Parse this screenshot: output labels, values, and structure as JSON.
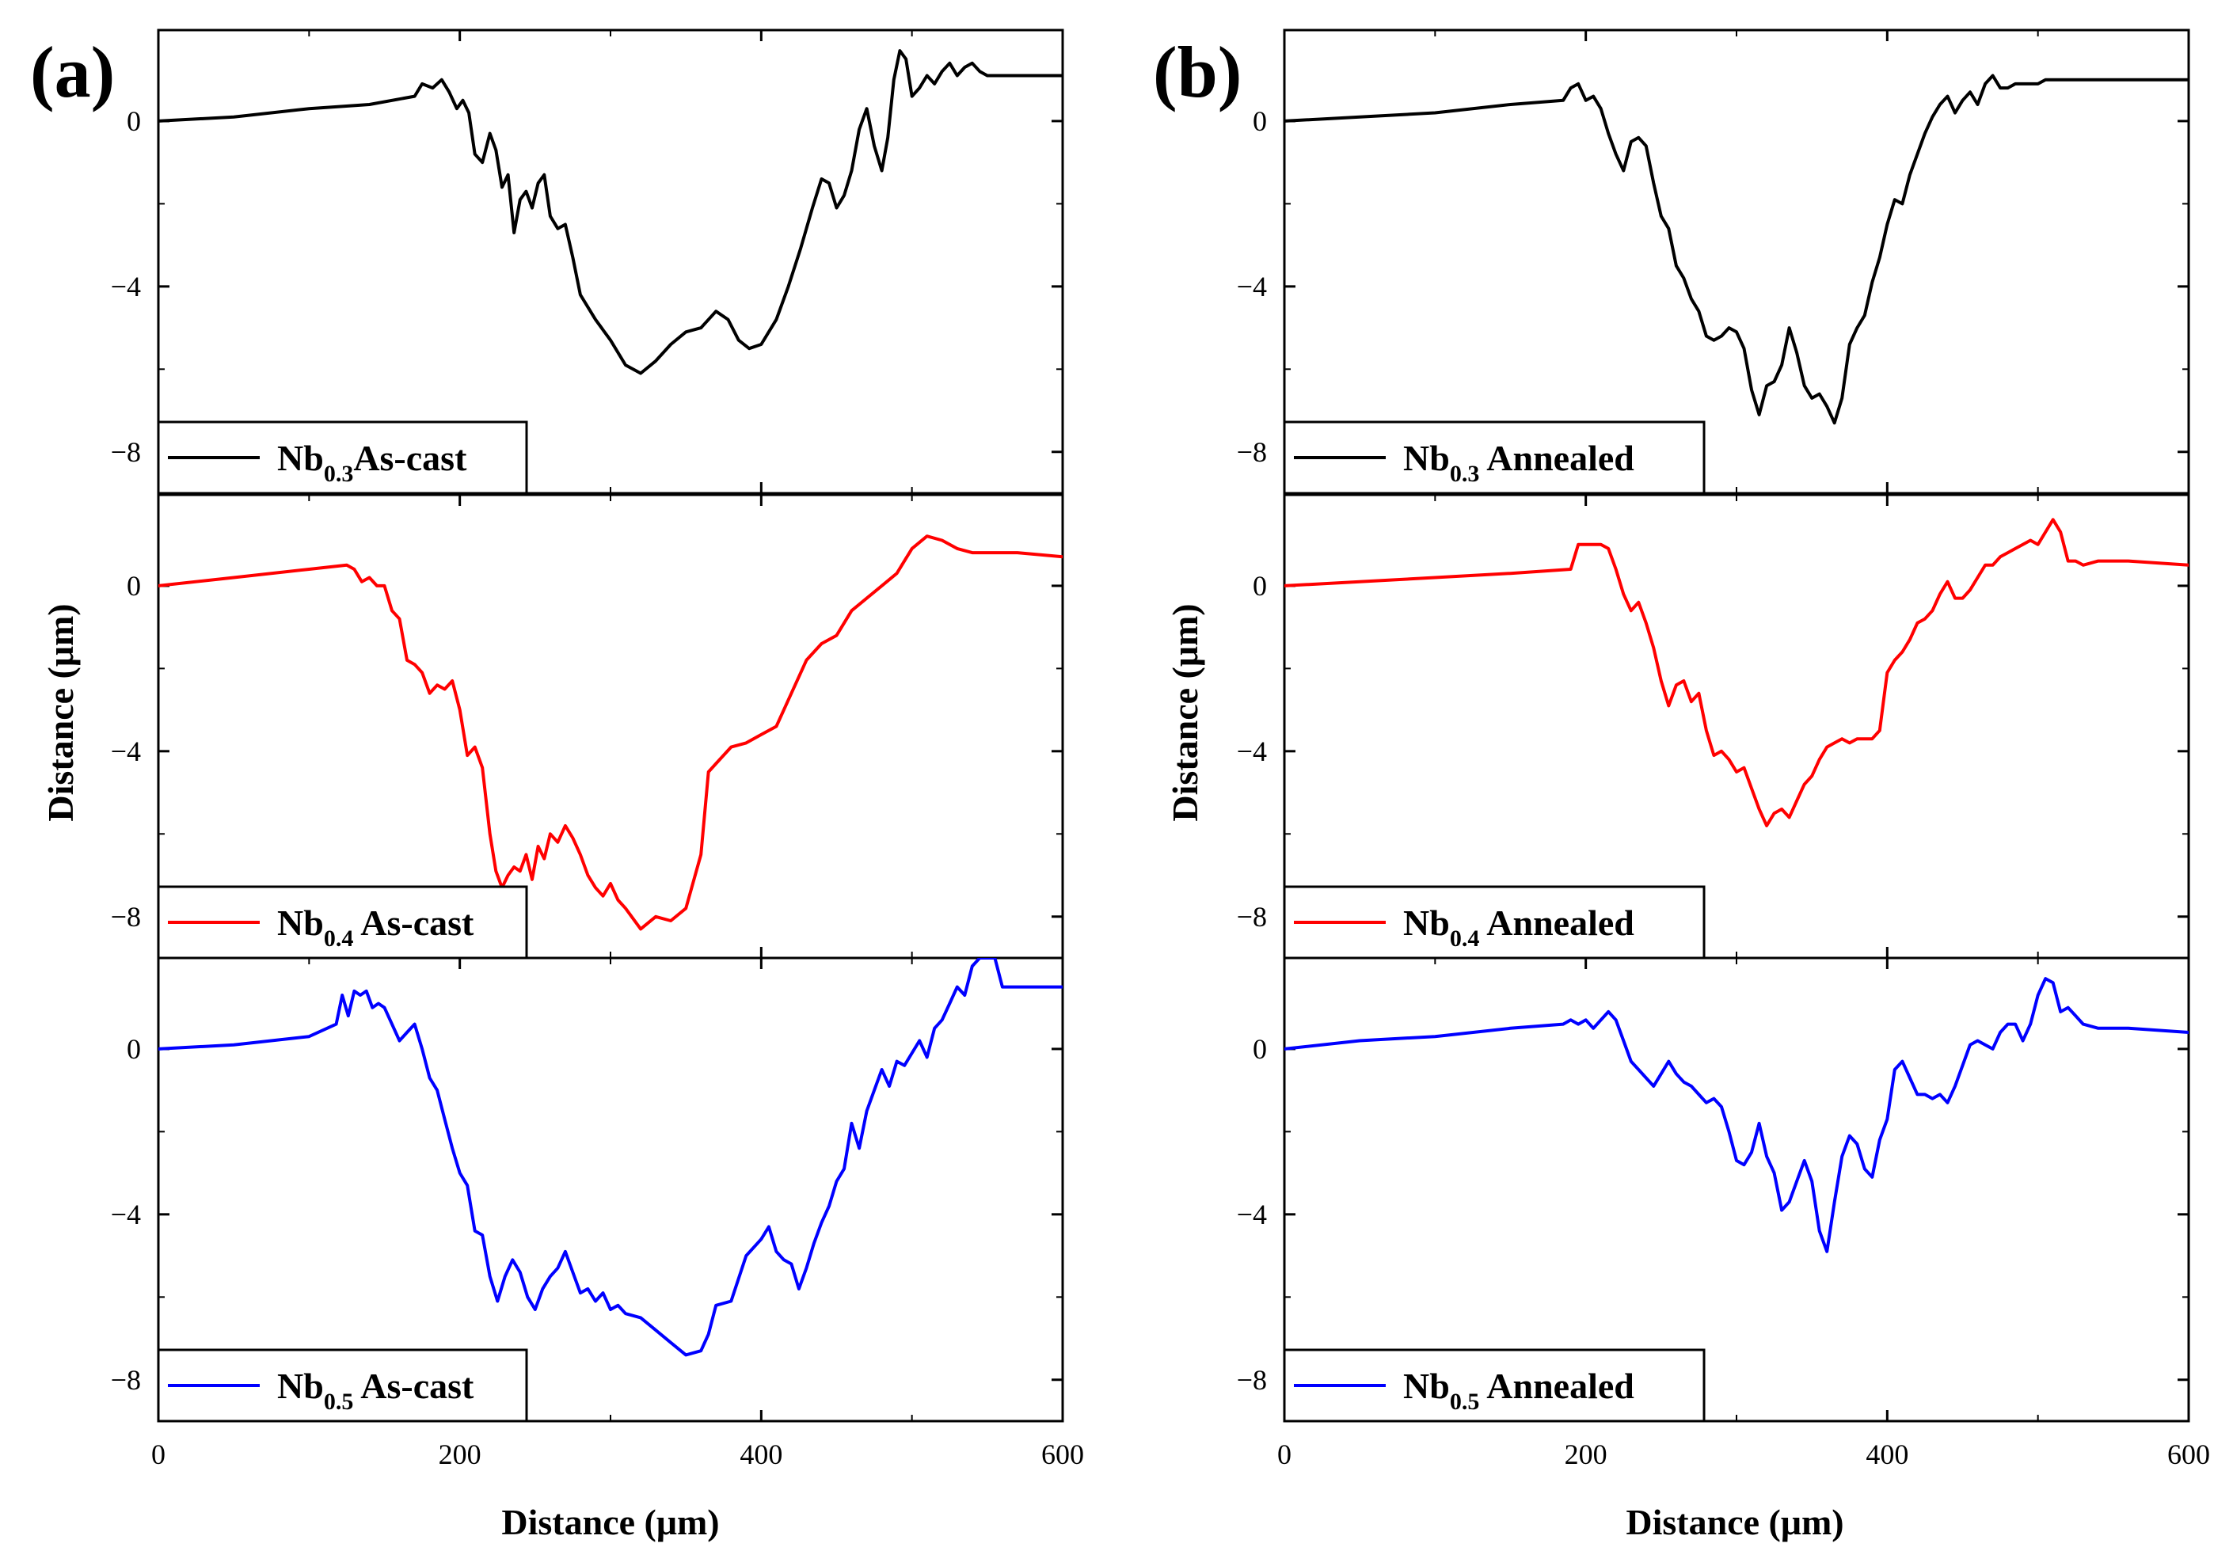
{
  "figure": {
    "panels": [
      {
        "letter": "(a)",
        "ylabel": "Distance (μm)",
        "xlabel": "Distance (μm)"
      },
      {
        "letter": "(b)",
        "ylabel": "Distance (μm)",
        "xlabel": "Distance (μm)"
      }
    ]
  },
  "chart_data": [
    {
      "type": "line",
      "panel": "(a)",
      "row": 0,
      "series_name": "Nb0.3As-cast",
      "legend": {
        "base": "Nb",
        "sub": "0.3",
        "rest": "As-cast"
      },
      "color": "#000000",
      "xlim": [
        0,
        600
      ],
      "ylim": [
        -9,
        2.2
      ],
      "xticks": [
        0,
        200,
        400,
        600
      ],
      "yticks": [
        0,
        -4,
        -8
      ],
      "x": [
        0,
        50,
        100,
        140,
        170,
        175,
        182,
        188,
        193,
        198,
        202,
        206,
        210,
        215,
        220,
        224,
        228,
        232,
        236,
        240,
        244,
        248,
        252,
        256,
        260,
        265,
        270,
        275,
        280,
        290,
        300,
        310,
        320,
        330,
        340,
        350,
        360,
        370,
        378,
        385,
        392,
        400,
        410,
        418,
        426,
        434,
        440,
        445,
        450,
        455,
        460,
        465,
        470,
        475,
        480,
        484,
        488,
        492,
        496,
        500,
        505,
        510,
        515,
        520,
        525,
        530,
        535,
        540,
        545,
        550,
        600
      ],
      "y": [
        0,
        0.1,
        0.3,
        0.4,
        0.6,
        0.9,
        0.8,
        1.0,
        0.7,
        0.3,
        0.5,
        0.2,
        -0.8,
        -1.0,
        -0.3,
        -0.7,
        -1.6,
        -1.3,
        -2.7,
        -1.9,
        -1.7,
        -2.1,
        -1.5,
        -1.3,
        -2.3,
        -2.6,
        -2.5,
        -3.3,
        -4.2,
        -4.8,
        -5.3,
        -5.9,
        -6.1,
        -5.8,
        -5.4,
        -5.1,
        -5.0,
        -4.6,
        -4.8,
        -5.3,
        -5.5,
        -5.4,
        -4.8,
        -4.0,
        -3.1,
        -2.1,
        -1.4,
        -1.5,
        -2.1,
        -1.8,
        -1.2,
        -0.2,
        0.3,
        -0.6,
        -1.2,
        -0.4,
        1.0,
        1.7,
        1.5,
        0.6,
        0.8,
        1.1,
        0.9,
        1.2,
        1.4,
        1.1,
        1.3,
        1.4,
        1.2,
        1.1,
        1.1
      ]
    },
    {
      "type": "line",
      "panel": "(a)",
      "row": 1,
      "series_name": "Nb0.4 As-cast",
      "legend": {
        "base": "Nb",
        "sub": "0.4",
        "rest": " As-cast"
      },
      "color": "#ff0000",
      "xlim": [
        0,
        600
      ],
      "ylim": [
        -9,
        2.2
      ],
      "xticks": [
        0,
        200,
        400,
        600
      ],
      "yticks": [
        0,
        -4,
        -8
      ],
      "x": [
        0,
        50,
        100,
        125,
        130,
        135,
        140,
        145,
        150,
        155,
        160,
        165,
        170,
        175,
        180,
        185,
        190,
        195,
        200,
        205,
        210,
        215,
        220,
        224,
        228,
        232,
        236,
        240,
        244,
        248,
        252,
        256,
        260,
        265,
        270,
        275,
        280,
        285,
        290,
        295,
        300,
        305,
        310,
        320,
        330,
        340,
        350,
        360,
        365,
        370,
        380,
        390,
        400,
        410,
        420,
        430,
        440,
        450,
        460,
        470,
        480,
        490,
        500,
        510,
        520,
        530,
        540,
        550,
        560,
        570,
        600
      ],
      "y": [
        0,
        0.2,
        0.4,
        0.5,
        0.4,
        0.1,
        0.2,
        0.0,
        0.0,
        -0.6,
        -0.8,
        -1.8,
        -1.9,
        -2.1,
        -2.6,
        -2.4,
        -2.5,
        -2.3,
        -3.0,
        -4.1,
        -3.9,
        -4.4,
        -6.0,
        -6.9,
        -7.3,
        -7.0,
        -6.8,
        -6.9,
        -6.5,
        -7.1,
        -6.3,
        -6.6,
        -6.0,
        -6.2,
        -5.8,
        -6.1,
        -6.5,
        -7.0,
        -7.3,
        -7.5,
        -7.2,
        -7.6,
        -7.8,
        -8.3,
        -8.0,
        -8.1,
        -7.8,
        -6.5,
        -4.5,
        -4.3,
        -3.9,
        -3.8,
        -3.6,
        -3.4,
        -2.6,
        -1.8,
        -1.4,
        -1.2,
        -0.6,
        -0.3,
        0.0,
        0.3,
        0.9,
        1.2,
        1.1,
        0.9,
        0.8,
        0.8,
        0.8,
        0.8,
        0.7
      ]
    },
    {
      "type": "line",
      "panel": "(a)",
      "row": 2,
      "series_name": "Nb0.5 As-cast",
      "legend": {
        "base": "Nb",
        "sub": "0.5",
        "rest": " As-cast"
      },
      "color": "#0000ff",
      "xlim": [
        0,
        600
      ],
      "ylim": [
        -9,
        2.2
      ],
      "xticks": [
        0,
        200,
        400,
        600
      ],
      "yticks": [
        0,
        -4,
        -8
      ],
      "x": [
        0,
        50,
        100,
        118,
        122,
        126,
        130,
        134,
        138,
        142,
        146,
        150,
        155,
        160,
        165,
        170,
        175,
        180,
        185,
        190,
        195,
        200,
        205,
        210,
        215,
        220,
        225,
        230,
        235,
        240,
        245,
        250,
        255,
        260,
        265,
        270,
        275,
        280,
        285,
        290,
        295,
        300,
        305,
        310,
        320,
        330,
        340,
        350,
        360,
        365,
        370,
        380,
        390,
        400,
        405,
        410,
        415,
        420,
        425,
        430,
        435,
        440,
        445,
        450,
        455,
        460,
        465,
        470,
        475,
        480,
        485,
        490,
        495,
        500,
        505,
        510,
        515,
        520,
        525,
        530,
        535,
        540,
        545,
        550,
        555,
        560,
        565,
        570,
        575,
        600
      ],
      "y": [
        0,
        0.1,
        0.3,
        0.6,
        1.3,
        0.8,
        1.4,
        1.3,
        1.4,
        1.0,
        1.1,
        1.0,
        0.6,
        0.2,
        0.4,
        0.6,
        0.0,
        -0.7,
        -1.0,
        -1.7,
        -2.4,
        -3.0,
        -3.3,
        -4.4,
        -4.5,
        -5.5,
        -6.1,
        -5.5,
        -5.1,
        -5.4,
        -6.0,
        -6.3,
        -5.8,
        -5.5,
        -5.3,
        -4.9,
        -5.4,
        -5.9,
        -5.8,
        -6.1,
        -5.9,
        -6.3,
        -6.2,
        -6.4,
        -6.5,
        -6.8,
        -7.1,
        -7.4,
        -7.3,
        -6.9,
        -6.2,
        -6.1,
        -5.0,
        -4.6,
        -4.3,
        -4.9,
        -5.1,
        -5.2,
        -5.8,
        -5.3,
        -4.7,
        -4.2,
        -3.8,
        -3.2,
        -2.9,
        -1.8,
        -2.4,
        -1.5,
        -1.0,
        -0.5,
        -0.9,
        -0.3,
        -0.4,
        -0.1,
        0.2,
        -0.2,
        0.5,
        0.7,
        1.1,
        1.5,
        1.3,
        2.0,
        2.2,
        2.2,
        2.2,
        1.5,
        1.5,
        1.5,
        1.5,
        1.5
      ]
    },
    {
      "type": "line",
      "panel": "(b)",
      "row": 0,
      "series_name": "Nb0.3 Annealed",
      "legend": {
        "base": "Nb",
        "sub": "0.3",
        "rest": " Annealed"
      },
      "color": "#000000",
      "xlim": [
        0,
        600
      ],
      "ylim": [
        -9,
        2.2
      ],
      "xticks": [
        0,
        200,
        400,
        600
      ],
      "yticks": [
        0,
        -4,
        -8
      ],
      "x": [
        0,
        50,
        100,
        150,
        185,
        190,
        195,
        200,
        205,
        210,
        215,
        220,
        225,
        230,
        235,
        240,
        245,
        250,
        255,
        260,
        265,
        270,
        275,
        280,
        285,
        290,
        295,
        300,
        305,
        310,
        315,
        320,
        325,
        330,
        335,
        340,
        345,
        350,
        355,
        360,
        365,
        370,
        375,
        380,
        385,
        390,
        395,
        400,
        405,
        410,
        415,
        420,
        425,
        430,
        435,
        440,
        445,
        450,
        455,
        460,
        465,
        470,
        475,
        480,
        485,
        490,
        495,
        500,
        505,
        510,
        515,
        520,
        525,
        530,
        540,
        560,
        600
      ],
      "y": [
        0,
        0.1,
        0.2,
        0.4,
        0.5,
        0.8,
        0.9,
        0.5,
        0.6,
        0.3,
        -0.3,
        -0.8,
        -1.2,
        -0.5,
        -0.4,
        -0.6,
        -1.5,
        -2.3,
        -2.6,
        -3.5,
        -3.8,
        -4.3,
        -4.6,
        -5.2,
        -5.3,
        -5.2,
        -5.0,
        -5.1,
        -5.5,
        -6.5,
        -7.1,
        -6.4,
        -6.3,
        -5.9,
        -5.0,
        -5.6,
        -6.4,
        -6.7,
        -6.6,
        -6.9,
        -7.3,
        -6.7,
        -5.4,
        -5.0,
        -4.7,
        -3.9,
        -3.3,
        -2.5,
        -1.9,
        -2.0,
        -1.3,
        -0.8,
        -0.3,
        0.1,
        0.4,
        0.6,
        0.2,
        0.5,
        0.7,
        0.4,
        0.9,
        1.1,
        0.8,
        0.8,
        0.9,
        0.9,
        0.9,
        0.9,
        1.0,
        1.0,
        1.0,
        1.0,
        1.0,
        1.0,
        1.0,
        1.0,
        1.0
      ]
    },
    {
      "type": "line",
      "panel": "(b)",
      "row": 1,
      "series_name": "Nb0.4 Annealed",
      "legend": {
        "base": "Nb",
        "sub": "0.4",
        "rest": " Annealed"
      },
      "color": "#ff0000",
      "xlim": [
        0,
        600
      ],
      "ylim": [
        -9,
        2.2
      ],
      "xticks": [
        0,
        200,
        400,
        600
      ],
      "yticks": [
        0,
        -4,
        -8
      ],
      "x": [
        0,
        50,
        100,
        150,
        190,
        195,
        200,
        205,
        210,
        215,
        220,
        225,
        230,
        235,
        240,
        245,
        250,
        255,
        260,
        265,
        270,
        275,
        280,
        285,
        290,
        295,
        300,
        305,
        310,
        315,
        320,
        325,
        330,
        335,
        340,
        345,
        350,
        355,
        360,
        365,
        370,
        375,
        380,
        385,
        390,
        395,
        400,
        405,
        410,
        415,
        420,
        425,
        430,
        435,
        440,
        445,
        450,
        455,
        460,
        465,
        470,
        475,
        480,
        485,
        490,
        495,
        500,
        505,
        510,
        515,
        520,
        525,
        530,
        540,
        560,
        600
      ],
      "y": [
        0,
        0.1,
        0.2,
        0.3,
        0.4,
        1.0,
        1.0,
        1.0,
        1.0,
        0.9,
        0.4,
        -0.2,
        -0.6,
        -0.4,
        -0.9,
        -1.5,
        -2.3,
        -2.9,
        -2.4,
        -2.3,
        -2.8,
        -2.6,
        -3.5,
        -4.1,
        -4.0,
        -4.2,
        -4.5,
        -4.4,
        -4.9,
        -5.4,
        -5.8,
        -5.5,
        -5.4,
        -5.6,
        -5.2,
        -4.8,
        -4.6,
        -4.2,
        -3.9,
        -3.8,
        -3.7,
        -3.8,
        -3.7,
        -3.7,
        -3.7,
        -3.5,
        -2.1,
        -1.8,
        -1.6,
        -1.3,
        -0.9,
        -0.8,
        -0.6,
        -0.2,
        0.1,
        -0.3,
        -0.3,
        -0.1,
        0.2,
        0.5,
        0.5,
        0.7,
        0.8,
        0.9,
        1.0,
        1.1,
        1.0,
        1.3,
        1.6,
        1.3,
        0.6,
        0.6,
        0.5,
        0.6,
        0.6,
        0.5
      ]
    },
    {
      "type": "line",
      "panel": "(b)",
      "row": 2,
      "series_name": "Nb0.5 Annealed",
      "legend": {
        "base": "Nb",
        "sub": "0.5",
        "rest": " Annealed"
      },
      "color": "#0000ff",
      "xlim": [
        0,
        600
      ],
      "ylim": [
        -9,
        2.2
      ],
      "xticks": [
        0,
        200,
        400,
        600
      ],
      "yticks": [
        0,
        -4,
        -8
      ],
      "x": [
        0,
        50,
        100,
        150,
        185,
        190,
        195,
        200,
        205,
        210,
        215,
        220,
        225,
        230,
        235,
        240,
        245,
        250,
        255,
        260,
        265,
        270,
        275,
        280,
        285,
        290,
        295,
        300,
        305,
        310,
        315,
        320,
        325,
        330,
        335,
        340,
        345,
        350,
        355,
        360,
        365,
        370,
        375,
        380,
        385,
        390,
        395,
        400,
        405,
        410,
        415,
        420,
        425,
        430,
        435,
        440,
        445,
        450,
        455,
        460,
        465,
        470,
        475,
        480,
        485,
        490,
        495,
        500,
        505,
        510,
        515,
        520,
        525,
        530,
        540,
        560,
        600
      ],
      "y": [
        0,
        0.2,
        0.3,
        0.5,
        0.6,
        0.7,
        0.6,
        0.7,
        0.5,
        0.7,
        0.9,
        0.7,
        0.2,
        -0.3,
        -0.5,
        -0.7,
        -0.9,
        -0.6,
        -0.3,
        -0.6,
        -0.8,
        -0.9,
        -1.1,
        -1.3,
        -1.2,
        -1.4,
        -2.0,
        -2.7,
        -2.8,
        -2.5,
        -1.8,
        -2.6,
        -3.0,
        -3.9,
        -3.7,
        -3.2,
        -2.7,
        -3.2,
        -4.4,
        -4.9,
        -3.7,
        -2.6,
        -2.1,
        -2.3,
        -2.9,
        -3.1,
        -2.2,
        -1.7,
        -0.5,
        -0.3,
        -0.7,
        -1.1,
        -1.1,
        -1.2,
        -1.1,
        -1.3,
        -0.9,
        -0.4,
        0.1,
        0.2,
        0.1,
        0.0,
        0.4,
        0.6,
        0.6,
        0.2,
        0.6,
        1.3,
        1.7,
        1.6,
        0.9,
        1.0,
        0.8,
        0.6,
        0.5,
        0.5,
        0.4
      ]
    }
  ]
}
